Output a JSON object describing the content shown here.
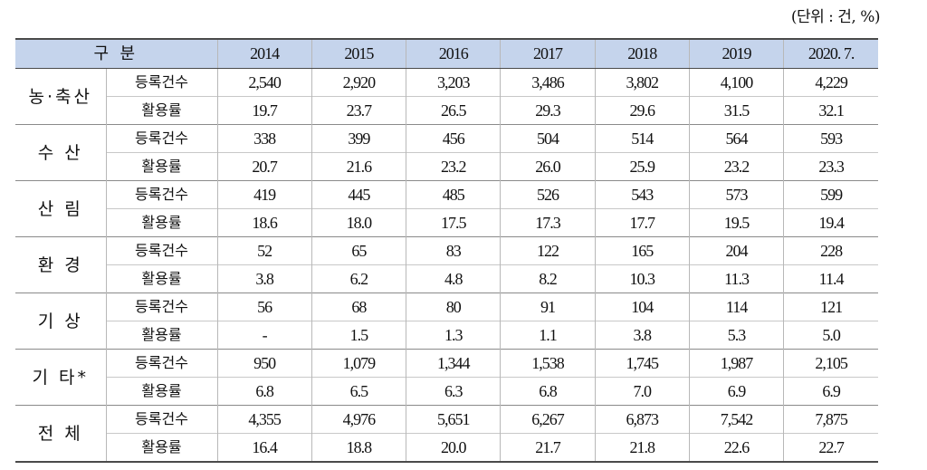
{
  "unit_label": "(단위 : 건, %)",
  "header": {
    "category": "구 분",
    "years": [
      "2014",
      "2015",
      "2016",
      "2017",
      "2018",
      "2019",
      "2020. 7."
    ]
  },
  "rows": [
    {
      "category": "농·축산",
      "reg_label": "등록건수",
      "reg": [
        "2,540",
        "2,920",
        "3,203",
        "3,486",
        "3,802",
        "4,100",
        "4,229"
      ],
      "use_label": "활용률",
      "use": [
        "19.7",
        "23.7",
        "26.5",
        "29.3",
        "29.6",
        "31.5",
        "32.1"
      ]
    },
    {
      "category": "수 산",
      "reg_label": "등록건수",
      "reg": [
        "338",
        "399",
        "456",
        "504",
        "514",
        "564",
        "593"
      ],
      "use_label": "활용률",
      "use": [
        "20.7",
        "21.6",
        "23.2",
        "26.0",
        "25.9",
        "23.2",
        "23.3"
      ]
    },
    {
      "category": "산 림",
      "reg_label": "등록건수",
      "reg": [
        "419",
        "445",
        "485",
        "526",
        "543",
        "573",
        "599"
      ],
      "use_label": "활용률",
      "use": [
        "18.6",
        "18.0",
        "17.5",
        "17.3",
        "17.7",
        "19.5",
        "19.4"
      ]
    },
    {
      "category": "환 경",
      "reg_label": "등록건수",
      "reg": [
        "52",
        "65",
        "83",
        "122",
        "165",
        "204",
        "228"
      ],
      "use_label": "활용률",
      "use": [
        "3.8",
        "6.2",
        "4.8",
        "8.2",
        "10.3",
        "11.3",
        "11.4"
      ]
    },
    {
      "category": "기 상",
      "reg_label": "등록건수",
      "reg": [
        "56",
        "68",
        "80",
        "91",
        "104",
        "114",
        "121"
      ],
      "use_label": "활용률",
      "use": [
        "-",
        "1.5",
        "1.3",
        "1.1",
        "3.8",
        "5.3",
        "5.0"
      ]
    },
    {
      "category": "기 타*",
      "reg_label": "등록건수",
      "reg": [
        "950",
        "1,079",
        "1,344",
        "1,538",
        "1,745",
        "1,987",
        "2,105"
      ],
      "use_label": "활용률",
      "use": [
        "6.8",
        "6.5",
        "6.3",
        "6.8",
        "7.0",
        "6.9",
        "6.9"
      ]
    },
    {
      "category": "전 체",
      "reg_label": "등록건수",
      "reg": [
        "4,355",
        "4,976",
        "5,651",
        "6,267",
        "6,873",
        "7,542",
        "7,875"
      ],
      "use_label": "활용률",
      "use": [
        "16.4",
        "18.8",
        "20.0",
        "21.7",
        "21.8",
        "22.6",
        "22.7"
      ]
    }
  ]
}
